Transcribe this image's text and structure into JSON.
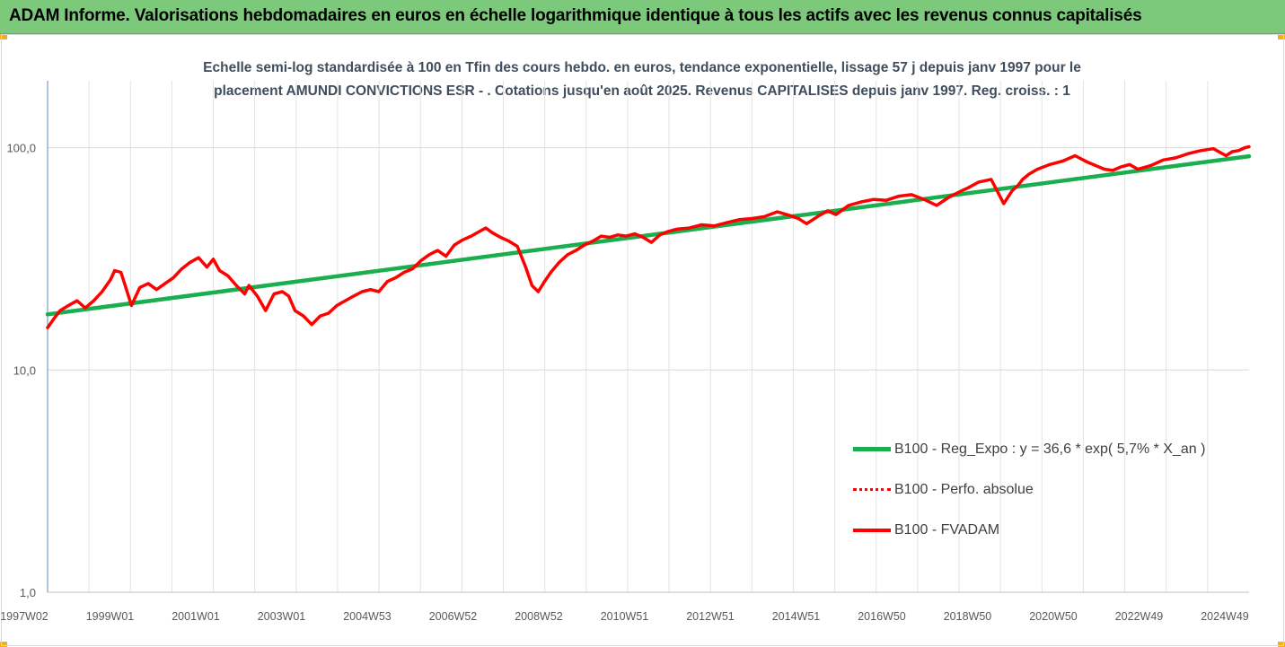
{
  "header": {
    "title": "ADAM Informe. Valorisations hebdomadaires en euros en échelle logarithmique identique à tous les actifs avec les revenus connus capitalisés"
  },
  "chart_data": {
    "type": "line",
    "subtitle_line1": "Echelle semi-log standardisée à 100 en Tfin des cours hebdo. en euros, tendance exponentielle, lissage 57 j depuis janv 1997 pour le",
    "subtitle_line2": "placement AMUNDI CONVICTIONS ESR - . Cotations jusqu'en août 2025. Revenus CAPITALISES depuis janv 1997. Reg. croiss. : 1",
    "y_scale": "log",
    "ylim": [
      1,
      200
    ],
    "y_ticks": [
      "100,0",
      "10,0",
      "1,0"
    ],
    "x_ticks": [
      "1997W02",
      "1999W01",
      "2001W01",
      "2003W01",
      "2004W53",
      "2006W52",
      "2008W52",
      "2010W51",
      "2012W51",
      "2014W51",
      "2016W50",
      "2018W50",
      "2020W50",
      "2022W49",
      "2024W49"
    ],
    "xlim": [
      1997.0,
      2025.65
    ],
    "grid": {
      "vertical": true,
      "horizontal": true
    },
    "legend_position": "bottom-right",
    "series": [
      {
        "name": "B100 - Reg_Expo : y = 36,6 * exp( 5,7% *  X_an )",
        "color": "#1aae4f",
        "style": "solid",
        "x": [
          1997.0,
          2025.65
        ],
        "values": [
          17.8,
          91.5
        ]
      },
      {
        "name": "B100 - Perfo. absolue",
        "color": "#ff0000",
        "style": "dotted",
        "x": [],
        "values": []
      },
      {
        "name": "B100 - FVADAM",
        "color": "#ff0000",
        "style": "solid",
        "x": [
          1997.0,
          1997.15,
          1997.3,
          1997.5,
          1997.7,
          1997.9,
          1998.1,
          1998.3,
          1998.5,
          1998.6,
          1998.75,
          1998.85,
          1999.0,
          1999.2,
          1999.4,
          1999.6,
          1999.8,
          2000.0,
          2000.2,
          2000.4,
          2000.6,
          2000.8,
          2000.95,
          2001.1,
          2001.3,
          2001.5,
          2001.7,
          2001.8,
          2002.0,
          2002.2,
          2002.4,
          2002.6,
          2002.75,
          2002.9,
          2003.1,
          2003.3,
          2003.5,
          2003.7,
          2003.9,
          2004.1,
          2004.3,
          2004.5,
          2004.7,
          2004.9,
          2005.1,
          2005.3,
          2005.5,
          2005.7,
          2005.9,
          2006.1,
          2006.3,
          2006.5,
          2006.7,
          2006.9,
          2007.1,
          2007.3,
          2007.45,
          2007.6,
          2007.8,
          2008.0,
          2008.2,
          2008.4,
          2008.55,
          2008.7,
          2008.85,
          2009.0,
          2009.2,
          2009.4,
          2009.6,
          2009.8,
          2010.0,
          2010.2,
          2010.4,
          2010.6,
          2010.8,
          2011.0,
          2011.2,
          2011.4,
          2011.6,
          2011.8,
          2012.0,
          2012.3,
          2012.6,
          2012.9,
          2013.2,
          2013.5,
          2013.8,
          2014.1,
          2014.4,
          2014.7,
          2014.9,
          2015.1,
          2015.4,
          2015.6,
          2015.8,
          2016.1,
          2016.4,
          2016.7,
          2017.0,
          2017.3,
          2017.6,
          2017.9,
          2018.2,
          2018.5,
          2018.8,
          2018.95,
          2019.2,
          2019.5,
          2019.8,
          2020.0,
          2020.15,
          2020.25,
          2020.4,
          2020.6,
          2020.9,
          2021.2,
          2021.5,
          2021.8,
          2022.0,
          2022.2,
          2022.4,
          2022.6,
          2022.8,
          2023.0,
          2023.3,
          2023.6,
          2023.9,
          2024.2,
          2024.5,
          2024.8,
          2025.1,
          2025.25,
          2025.4,
          2025.55,
          2025.65
        ],
        "values": [
          15.5,
          17.0,
          18.5,
          19.5,
          20.5,
          19.0,
          20.5,
          22.5,
          25.5,
          28.0,
          27.5,
          24.0,
          19.5,
          23.5,
          24.5,
          23.0,
          24.5,
          26.0,
          28.5,
          30.5,
          32.0,
          29.0,
          31.5,
          28.0,
          26.5,
          24.0,
          22.0,
          24.0,
          21.5,
          18.5,
          22.0,
          22.5,
          21.5,
          18.5,
          17.5,
          16.0,
          17.5,
          18.0,
          19.5,
          20.5,
          21.5,
          22.5,
          23.0,
          22.5,
          25.0,
          26.0,
          27.5,
          28.5,
          31.0,
          33.0,
          34.5,
          32.5,
          36.5,
          38.5,
          40.0,
          42.0,
          43.5,
          41.5,
          39.5,
          38.0,
          36.0,
          29.0,
          24.0,
          22.5,
          25.0,
          27.5,
          30.5,
          33.0,
          34.5,
          36.5,
          38.0,
          40.0,
          39.5,
          40.5,
          40.0,
          41.0,
          39.5,
          37.5,
          40.5,
          42.0,
          43.0,
          43.5,
          45.0,
          44.5,
          46.0,
          47.5,
          48.0,
          49.0,
          51.5,
          49.5,
          48.0,
          45.5,
          49.5,
          52.0,
          50.0,
          55.0,
          57.0,
          58.5,
          58.0,
          60.5,
          61.5,
          58.5,
          55.0,
          60.0,
          64.0,
          66.0,
          70.0,
          72.0,
          56.0,
          64.0,
          68.0,
          72.0,
          76.0,
          80.0,
          84.0,
          87.0,
          92.0,
          86.0,
          83.0,
          80.0,
          79.0,
          82.0,
          84.0,
          80.0,
          83.0,
          88.0,
          90.0,
          94.0,
          97.0,
          99.0,
          92.0,
          96.0,
          97.0,
          100.0,
          101.0
        ]
      }
    ]
  }
}
